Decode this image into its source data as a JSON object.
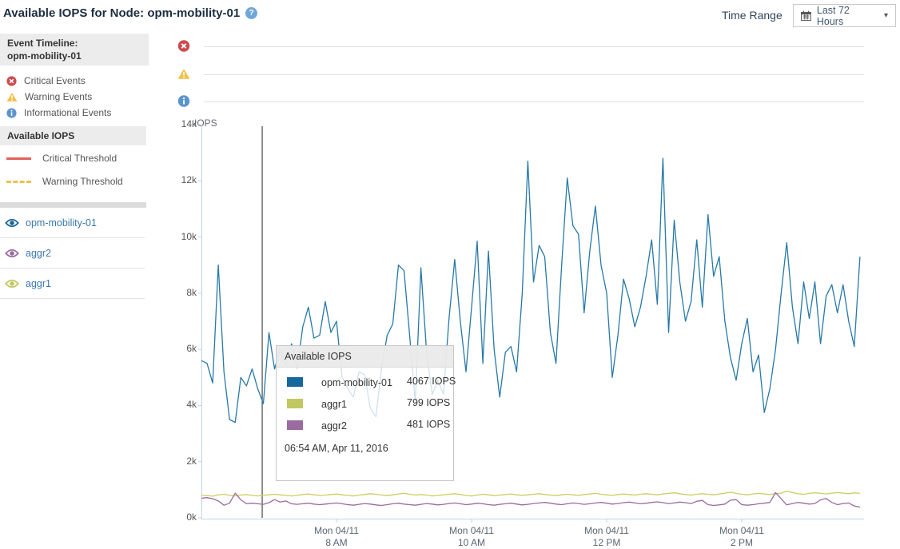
{
  "header": {
    "title": "Available IOPS for Node: opm-mobility-01",
    "help_icon": "?",
    "time_range_label": "Time Range",
    "time_range_value": "Last 72 Hours"
  },
  "sidebar": {
    "event_timeline": {
      "title_line1": "Event Timeline:",
      "title_line2": "opm-mobility-01",
      "legend": [
        {
          "icon": "critical-event-icon",
          "label": "Critical Events",
          "color": "#cb4c4e"
        },
        {
          "icon": "warning-event-icon",
          "label": "Warning Events",
          "color": "#f0c24b"
        },
        {
          "icon": "info-event-icon",
          "label": "Informational Events",
          "color": "#5994cf"
        }
      ]
    },
    "available_iops": {
      "title": "Available IOPS",
      "thresholds": [
        {
          "label": "Critical Threshold",
          "style": "solid",
          "color": "#e2605f"
        },
        {
          "label": "Warning Threshold",
          "style": "dashed",
          "color": "#e8c34d"
        }
      ],
      "items": [
        {
          "label": "opm-mobility-01",
          "color": "#1a6696"
        },
        {
          "label": "aggr2",
          "color": "#9a6b9f"
        },
        {
          "label": "aggr1",
          "color": "#c2c75f"
        }
      ]
    }
  },
  "tooltip": {
    "title": "Available IOPS",
    "rows": [
      {
        "name": "opm-mobility-01",
        "value": "4067 IOPS",
        "color": "#15689a"
      },
      {
        "name": "aggr1",
        "value": "799 IOPS",
        "color": "#c2c75f"
      },
      {
        "name": "aggr2",
        "value": "481 IOPS",
        "color": "#9a6b9f"
      }
    ],
    "timestamp": "06:54 AM, Apr 11, 2016"
  },
  "chart_data": {
    "type": "line",
    "title": "Available IOPS",
    "ylabel": "IOPS",
    "ylim": [
      0,
      14000
    ],
    "grid": false,
    "y_ticks": [
      "0k",
      "2k",
      "4k",
      "6k",
      "8k",
      "10k",
      "12k",
      "14k"
    ],
    "x_ticks": [
      {
        "line1": "Mon 04/11",
        "line2": "8 AM"
      },
      {
        "line1": "Mon 04/11",
        "line2": "10 AM"
      },
      {
        "line1": "Mon 04/11",
        "line2": "12 PM"
      },
      {
        "line1": "Mon 04/11",
        "line2": "2 PM"
      }
    ],
    "x_tick_indices": [
      24,
      48,
      72,
      96
    ],
    "x_start_time": "6:00 AM",
    "x_interval_minutes": 5,
    "cursor": {
      "minutes_after_start": 54,
      "timestamp": "06:54 AM, Apr 11, 2016"
    },
    "series": [
      {
        "name": "opm-mobility-01",
        "color": "#2679a8",
        "values": [
          5600,
          5500,
          4800,
          9000,
          5200,
          3500,
          3400,
          5000,
          4700,
          5300,
          4600,
          4067,
          6600,
          5300,
          6000,
          5400,
          6200,
          5300,
          6800,
          7500,
          6400,
          6500,
          7700,
          6600,
          7000,
          5000,
          4600,
          4300,
          5200,
          5100,
          3900,
          3600,
          5300,
          6500,
          6900,
          9000,
          8800,
          6500,
          4100,
          8900,
          5900,
          4400,
          4900,
          4400,
          7100,
          9200,
          7000,
          5200,
          7500,
          9850,
          5500,
          9500,
          6000,
          4300,
          5900,
          6100,
          5200,
          8000,
          12700,
          8400,
          9700,
          9300,
          6600,
          5500,
          9000,
          12100,
          10400,
          10100,
          7300,
          9500,
          11100,
          9000,
          8000,
          5000,
          6500,
          8500,
          7800,
          6800,
          7500,
          8600,
          9900,
          7600,
          12800,
          6600,
          10600,
          8400,
          7000,
          7700,
          9900,
          7500,
          10800,
          8600,
          9300,
          7000,
          5700,
          4900,
          6200,
          7100,
          5200,
          5800,
          3750,
          4600,
          6000,
          8000,
          9800,
          7500,
          6200,
          8400,
          7100,
          8400,
          6200,
          7900,
          8300,
          7300,
          8300,
          7000,
          6100,
          9300
        ]
      },
      {
        "name": "aggr1",
        "color": "#cdcc63",
        "values": [
          800,
          790,
          770,
          820,
          840,
          800,
          780,
          810,
          830,
          800,
          780,
          799,
          820,
          840,
          820,
          800,
          780,
          800,
          830,
          850,
          820,
          800,
          810,
          830,
          850,
          820,
          800,
          780,
          810,
          830,
          860,
          840,
          810,
          790,
          820,
          850,
          870,
          840,
          810,
          830,
          810,
          780,
          800,
          820,
          840,
          860,
          830,
          800,
          780,
          810,
          840,
          820,
          790,
          810,
          830,
          850,
          820,
          800,
          820,
          840,
          860,
          830,
          810,
          790,
          820,
          840,
          820,
          800,
          830,
          850,
          870,
          840,
          820,
          800,
          830,
          850,
          830,
          810,
          840,
          860,
          840,
          820,
          850,
          870,
          890,
          860,
          830,
          810,
          840,
          860,
          840,
          820,
          850,
          880,
          910,
          870,
          840,
          820,
          850,
          870,
          850,
          830,
          860,
          880,
          950,
          900,
          860,
          840,
          870,
          890,
          870,
          850,
          880,
          900,
          880,
          860,
          890,
          870
        ]
      },
      {
        "name": "aggr2",
        "color": "#9a6b9f",
        "values": [
          700,
          720,
          680,
          600,
          450,
          520,
          880,
          640,
          500,
          520,
          500,
          481,
          540,
          650,
          560,
          600,
          500,
          480,
          500,
          520,
          490,
          470,
          490,
          510,
          530,
          500,
          470,
          450,
          480,
          510,
          490,
          460,
          440,
          470,
          500,
          520,
          490,
          470,
          450,
          480,
          510,
          490,
          460,
          480,
          510,
          530,
          500,
          470,
          490,
          520,
          500,
          470,
          450,
          480,
          500,
          520,
          490,
          460,
          480,
          510,
          530,
          550,
          520,
          490,
          470,
          500,
          530,
          510,
          480,
          500,
          530,
          550,
          520,
          490,
          510,
          540,
          560,
          530,
          500,
          520,
          550,
          570,
          540,
          510,
          530,
          560,
          540,
          510,
          590,
          620,
          470,
          440,
          460,
          490,
          630,
          650,
          470,
          450,
          470,
          500,
          520,
          550,
          900,
          680,
          460,
          510,
          550,
          520,
          490,
          510,
          640,
          690,
          550,
          470,
          510,
          530,
          420,
          380
        ]
      }
    ]
  },
  "colors": {
    "axis": "#bcd6e6",
    "lane": "#e0e0e0",
    "cursor": "#4a4a4a",
    "link_text": "#3a77ad",
    "section_header_bg": "#ececec"
  }
}
